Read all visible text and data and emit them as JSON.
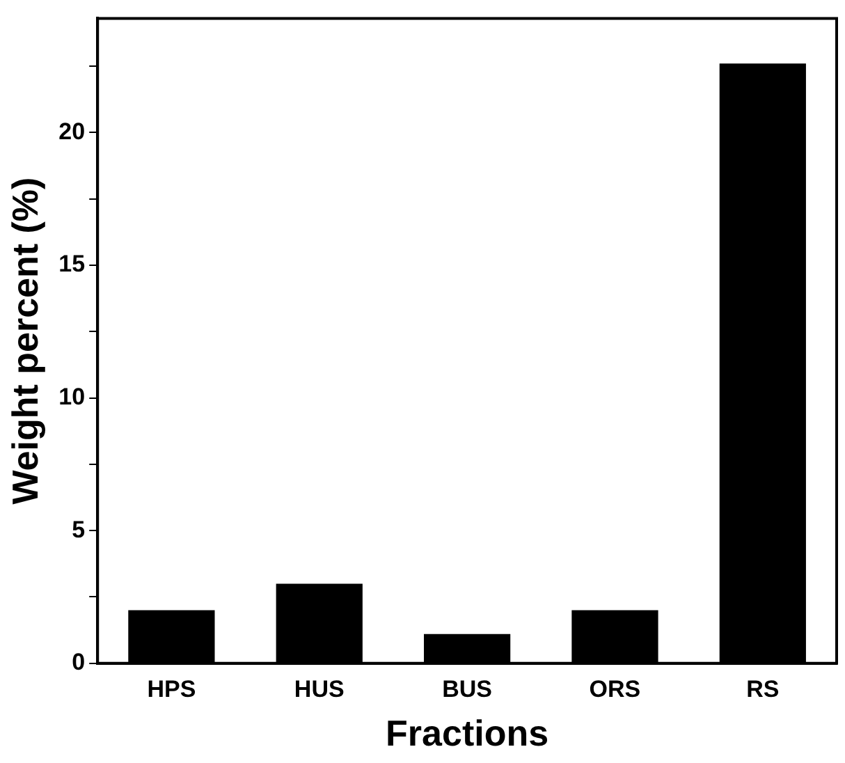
{
  "chart_data": {
    "type": "bar",
    "xlabel": "Fractions",
    "ylabel": "Weight percent (%)",
    "categories": [
      "HPS",
      "HUS",
      "BUS",
      "ORS",
      "RS"
    ],
    "values": [
      2.0,
      3.0,
      1.1,
      2.0,
      22.6
    ],
    "color": "#000000",
    "ylim": [
      0,
      24.3
    ],
    "yticks": [
      0,
      {
        "value": 2.5,
        "label": null
      },
      5,
      {
        "value": 7.5,
        "label": null
      },
      10,
      {
        "value": 12.5,
        "label": null
      },
      15,
      {
        "value": 17.5,
        "label": null
      },
      20,
      {
        "value": 22.5,
        "label": null
      }
    ],
    "grid": false
  }
}
